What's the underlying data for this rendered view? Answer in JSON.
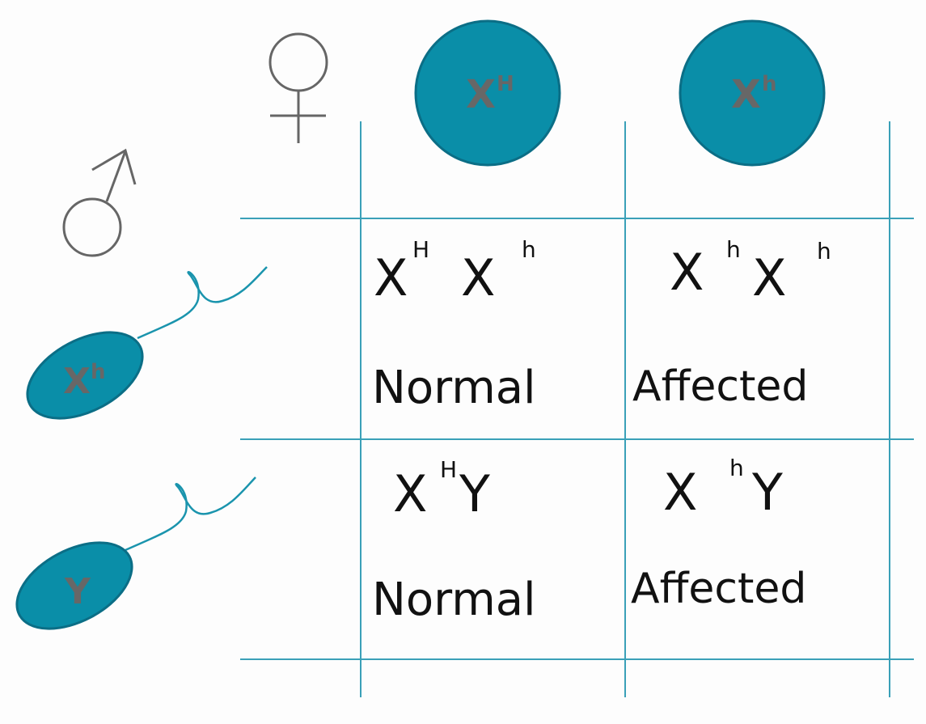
{
  "colors": {
    "gamete_fill": "#0a8ea8",
    "gamete_stroke": "#0b6e86",
    "grid": "#3aa0b8",
    "symbol": "#666666",
    "allele_text": "#676767",
    "ink": "#111111"
  },
  "female": {
    "symbol": "female-symbol",
    "gametes": [
      {
        "base": "X",
        "sup": "H"
      },
      {
        "base": "X",
        "sup": "h"
      }
    ]
  },
  "male": {
    "symbol": "male-symbol",
    "gametes": [
      {
        "base": "X",
        "sup": "h"
      },
      {
        "base": "Y",
        "sup": ""
      }
    ]
  },
  "cells": [
    {
      "genotype": [
        {
          "base": "X",
          "sup": "H"
        },
        {
          "base": "X",
          "sup": "h"
        }
      ],
      "phenotype": "Normal"
    },
    {
      "genotype": [
        {
          "base": "X",
          "sup": "h"
        },
        {
          "base": "X",
          "sup": "h"
        }
      ],
      "phenotype": "Affected"
    },
    {
      "genotype": [
        {
          "base": "X",
          "sup": "H"
        },
        {
          "base": "Y",
          "sup": ""
        }
      ],
      "phenotype": "Normal"
    },
    {
      "genotype": [
        {
          "base": "X",
          "sup": "h"
        },
        {
          "base": "Y",
          "sup": ""
        }
      ],
      "phenotype": "Affected"
    }
  ]
}
